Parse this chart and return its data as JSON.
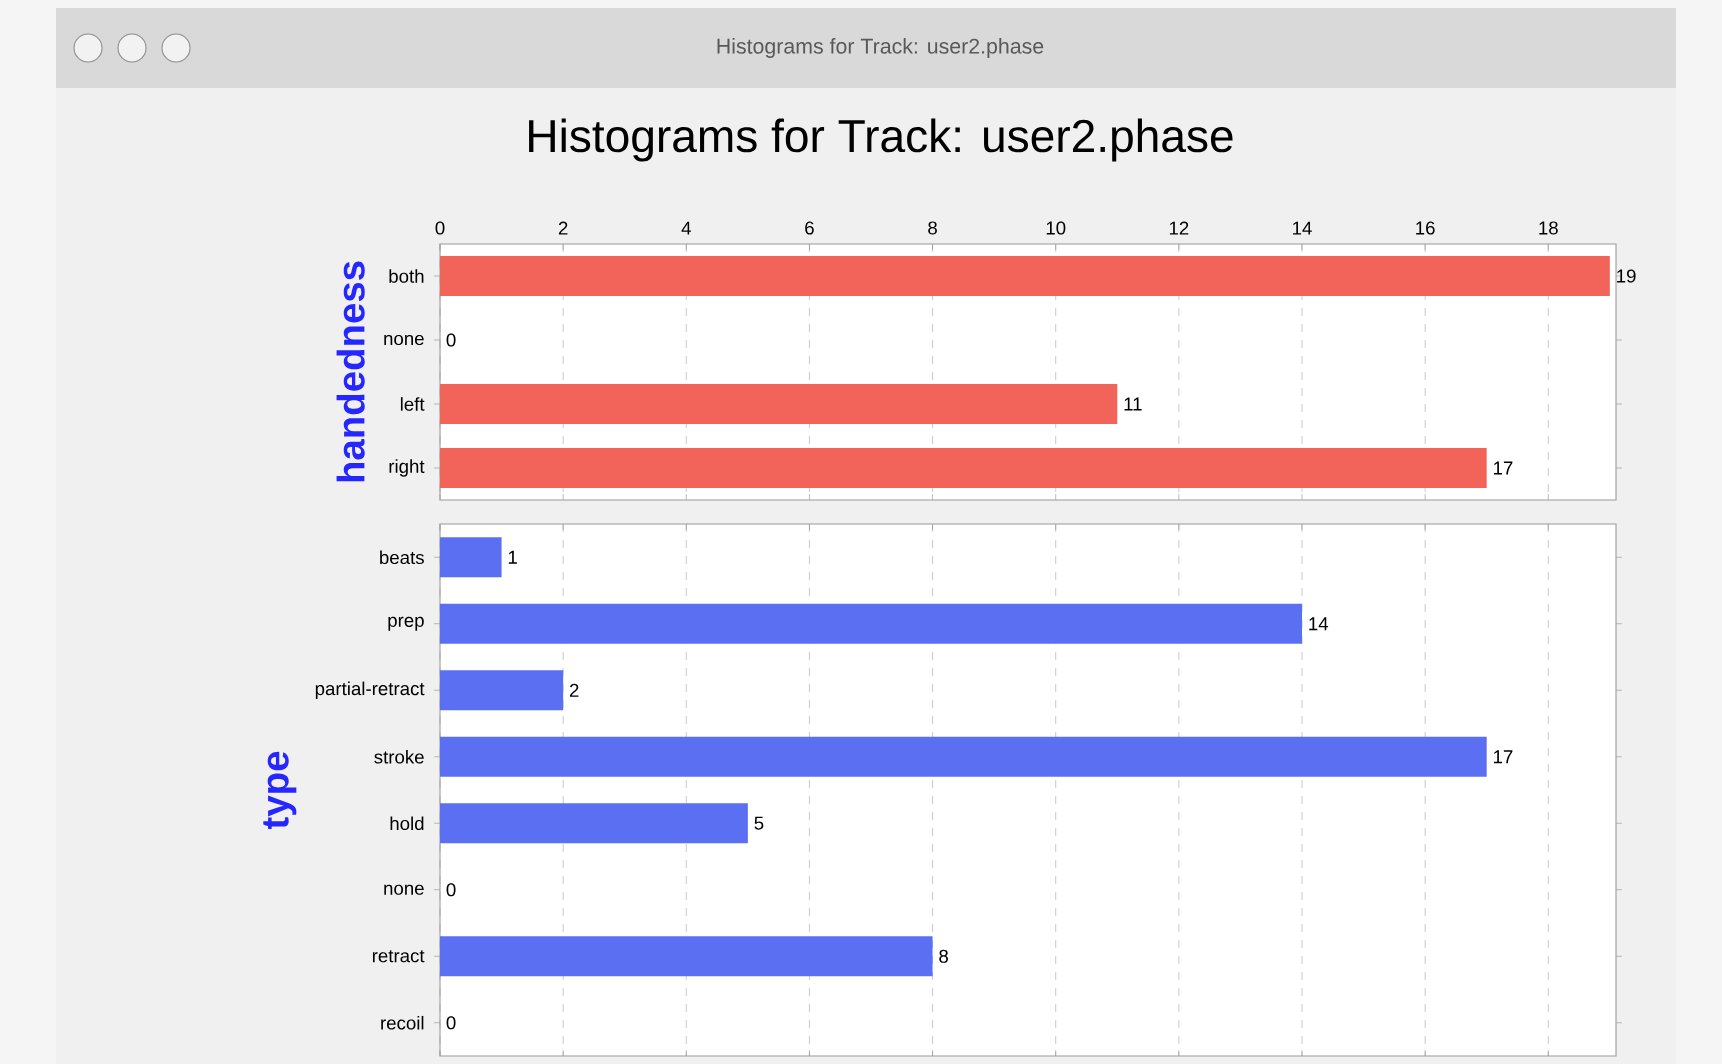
{
  "chart_data": [
    {
      "type": "bar",
      "orientation": "horizontal",
      "title": "Histograms for Track: user2.phase",
      "annotations": [
        "Histograms for Track: user2.phase"
      ],
      "ylabel": "handedness",
      "categories": [
        "both",
        "none",
        "left",
        "right"
      ],
      "values": [
        19,
        0,
        11,
        17
      ],
      "color": "#f2635a",
      "xlim": [
        0,
        19.1
      ],
      "xticks": [
        0,
        2,
        4,
        6,
        8,
        10,
        12,
        14,
        16,
        18
      ],
      "grid": "x",
      "data_labels": true
    },
    {
      "type": "bar",
      "orientation": "horizontal",
      "ylabel": "type",
      "categories": [
        "beats",
        "prep",
        "partial-retract",
        "stroke",
        "hold",
        "none",
        "retract",
        "recoil"
      ],
      "values": [
        1,
        14,
        2,
        17,
        5,
        0,
        8,
        0
      ],
      "color": "#5b6ff2",
      "xlim": [
        0,
        19.1
      ],
      "xticks": [
        0,
        2,
        4,
        6,
        8,
        10,
        12,
        14,
        16,
        18
      ],
      "grid": "x",
      "data_labels": true,
      "tick_labels": "y"
    }
  ]
}
